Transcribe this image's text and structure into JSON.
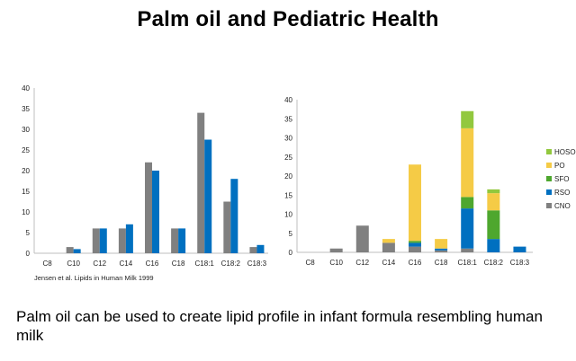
{
  "slide": {
    "title": "Palm oil and Pediatric Health",
    "source_note": "Jensen et al. Lipids in Human Milk 1999",
    "footer_text": "Palm oil can be used to create lipid profile in infant formula resembling human milk"
  },
  "chart_data": [
    {
      "type": "bar",
      "categories": [
        "C8",
        "C10",
        "C12",
        "C14",
        "C16",
        "C18",
        "C18:1",
        "C18:2",
        "C18:3"
      ],
      "series": [
        {
          "values": [
            0,
            1.5,
            6,
            6,
            22,
            6,
            34,
            12.5,
            1.5
          ],
          "color": "#808080"
        },
        {
          "values": [
            0,
            1,
            6,
            7,
            20,
            6,
            27.5,
            18,
            2
          ],
          "color": "#0070C0"
        }
      ],
      "title": "",
      "xlabel": "",
      "ylabel": "",
      "ylim": [
        0,
        40
      ],
      "yticks": [
        0,
        5,
        10,
        15,
        20,
        25,
        30,
        35,
        40
      ],
      "grid": false
    },
    {
      "type": "bar",
      "stacked": true,
      "categories": [
        "C8",
        "C10",
        "C12",
        "C14",
        "C16",
        "C18",
        "C18:1",
        "C18:2",
        "C18:3"
      ],
      "series": [
        {
          "name": "CNO",
          "color": "#808080",
          "values": [
            0,
            1,
            7,
            2.5,
            1.5,
            0.5,
            1,
            0,
            0
          ]
        },
        {
          "name": "RSO",
          "color": "#0070C0",
          "values": [
            0,
            0,
            0,
            0,
            1,
            0.5,
            10.5,
            3.5,
            1.5
          ]
        },
        {
          "name": "SFO",
          "color": "#4EA72E",
          "values": [
            0,
            0,
            0,
            0,
            0.5,
            0,
            3,
            7.5,
            0
          ]
        },
        {
          "name": "PO",
          "color": "#F5CB46",
          "values": [
            0,
            0,
            0,
            1,
            20,
            2.5,
            18,
            4.5,
            0
          ]
        },
        {
          "name": "HOSO",
          "color": "#92C83E",
          "values": [
            0,
            0,
            0,
            0,
            0,
            0,
            4.5,
            1,
            0
          ]
        }
      ],
      "legend_order": [
        "HOSO",
        "PO",
        "SFO",
        "RSO",
        "CNO"
      ],
      "legend_position": "right",
      "title": "",
      "xlabel": "",
      "ylabel": "",
      "ylim": [
        0,
        40
      ],
      "yticks": [
        0,
        5,
        10,
        15,
        20,
        25,
        30,
        35,
        40
      ],
      "grid": false
    }
  ]
}
